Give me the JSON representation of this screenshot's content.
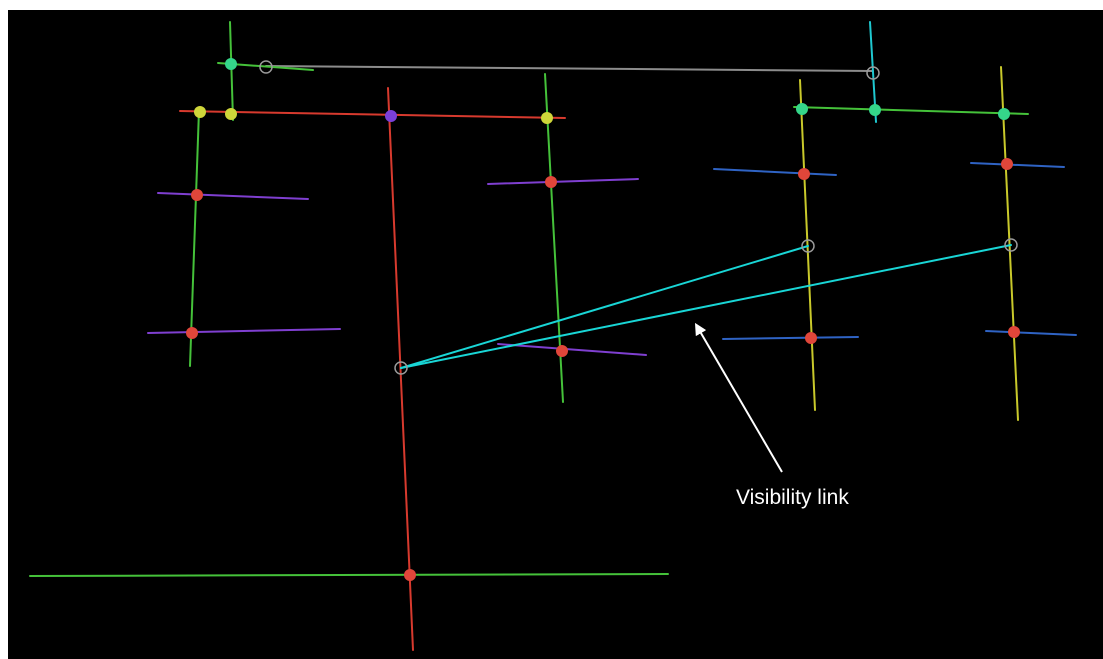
{
  "colors": {
    "background": "#000000",
    "annotation": "#ffffff",
    "visibility_link": "#19d6d6",
    "open_node": "#9a9a9a",
    "gray_segment": "#8c8c8c",
    "red_segment": "#d83a2e",
    "green_segment": "#45c23a",
    "yellow_segment": "#c9c92b",
    "purple_segment": "#7f3fd0",
    "blue_segment": "#2f63c4",
    "cyan_segment": "#1fc8d0",
    "red_node": "#e0463a",
    "green_node": "#35d68a",
    "yellow_node": "#cfd63a",
    "purple_node": "#7a3fd8"
  },
  "annotation": {
    "label": "Visibility link",
    "icon": "arrow-icon"
  }
}
